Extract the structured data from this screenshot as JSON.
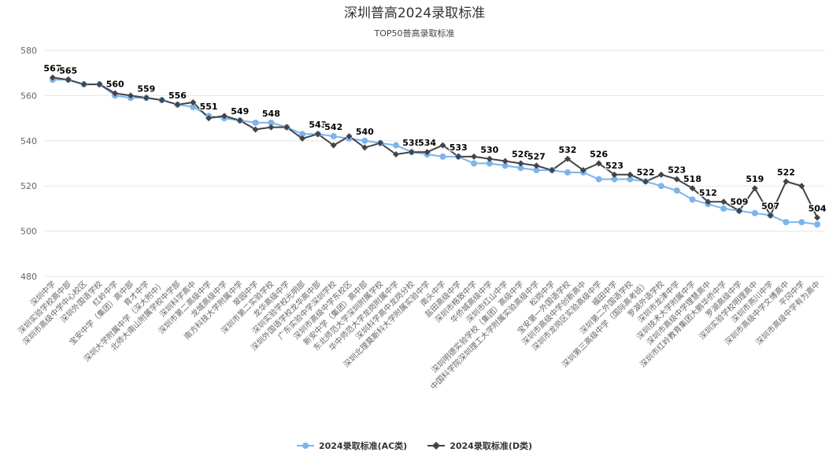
{
  "chart_data": {
    "type": "line",
    "title": "深圳普高2024录取标准",
    "subtitle": "TOP50普高录取标准",
    "ylim": [
      480,
      580
    ],
    "yticks": [
      480,
      500,
      520,
      540,
      560,
      580
    ],
    "grid": true,
    "legend_position": "bottom",
    "categories": [
      "深圳中学",
      "深圳实验学校高中部",
      "深圳市高级中学中心校区",
      "深圳外国语学校",
      "红岭中学",
      "宝安中学（集团）高中部",
      "育才中学",
      "深圳大学附属中学（深大附中）",
      "北师大南山附属学校中学部",
      "深圳科学高中",
      "深圳市第二高级中学",
      "龙城高级中学",
      "南方科技大学附属中学",
      "翠园中学",
      "深圳市第二实验学校",
      "龙华高级中学",
      "深圳实验学校光明部",
      "深圳外国语学校龙华高中部",
      "广东实验中学深圳学校",
      "深圳市高级中学东校区",
      "新安中学（集团）高中部",
      "东北师范大学深圳附属学校",
      "华中师范大学龙岗附属中学",
      "深圳科学高中龙岗分校",
      "深圳北理莫斯科大学附属实验中学",
      "南头中学",
      "盐田高级中学",
      "深圳市格致中学",
      "华侨城高级中学",
      "深圳市红山中学",
      "深圳明德实验学校（集团）高级中学",
      "中国科学院深圳理工大学附属实验高级中学",
      "松岗中学",
      "宝安第一外国语学校",
      "深圳市高级中学创新高中",
      "深圳市龙岗区实验高级中学",
      "福田中学",
      "深圳第二外国语学校",
      "深圳第三高级中学（国际高考班）",
      "罗湖外语学校",
      "深圳市龙津中学",
      "深圳技术大学附属中学",
      "深圳市高级中学理慧高中",
      "深圳市红岭教育集团大鹏华侨中学",
      "罗湖高级中学",
      "深圳实验学校明理高中",
      "深圳市燕川中学",
      "深圳市高级中学文博高中",
      "平冈中学",
      "深圳市高级中学有为高中"
    ],
    "series": [
      {
        "name": "2024录取标准(AC类)",
        "color": "#7cb5ec",
        "marker": "circle",
        "values": [
          567,
          567,
          565,
          565,
          560,
          559,
          559,
          558,
          556,
          555,
          551,
          550,
          549,
          548,
          548,
          546,
          543,
          543,
          542,
          541,
          540,
          539,
          538,
          535,
          534,
          533,
          533,
          530,
          530,
          529,
          528,
          527,
          527,
          526,
          526,
          523,
          523,
          523,
          522,
          520,
          518,
          514,
          512,
          510,
          509,
          508,
          507,
          504,
          504,
          503
        ]
      },
      {
        "name": "2024录取标准(D类)",
        "color": "#434348",
        "marker": "diamond",
        "values": [
          568,
          567,
          565,
          565,
          561,
          560,
          559,
          558,
          556,
          557,
          550,
          551,
          549,
          545,
          546,
          546,
          541,
          543,
          538,
          542,
          537,
          539,
          534,
          535,
          535,
          538,
          533,
          533,
          532,
          531,
          530,
          529,
          527,
          532,
          527,
          530,
          525,
          525,
          522,
          525,
          523,
          519,
          513,
          513,
          509,
          519,
          507,
          522,
          520,
          506
        ]
      }
    ],
    "data_labels": [
      {
        "index": 0,
        "value": "567"
      },
      {
        "index": 2,
        "value": "565"
      },
      {
        "index": 5,
        "value": "560"
      },
      {
        "index": 7,
        "value": "559"
      },
      {
        "index": 10,
        "value": "556"
      },
      {
        "index": 12,
        "value": "551"
      },
      {
        "index": 15,
        "value": "549"
      },
      {
        "index": 17,
        "value": "548"
      },
      {
        "index": 20,
        "value": "543"
      },
      {
        "index": 22,
        "value": "542"
      },
      {
        "index": 24,
        "value": "540"
      },
      {
        "index": 27,
        "value": "538"
      },
      {
        "index": 29,
        "value": "534"
      },
      {
        "index": 31,
        "value": "533"
      },
      {
        "index": 33,
        "value": "530"
      },
      {
        "index": 35,
        "value": "528"
      },
      {
        "index": 37,
        "value": "527"
      },
      {
        "index": 39,
        "value": "532"
      },
      {
        "index": 41,
        "value": "526"
      },
      {
        "index": 43,
        "value": "523"
      },
      {
        "index": 45,
        "value": "522"
      },
      {
        "index": 47,
        "value": "523"
      },
      {
        "index": 48,
        "value": "518"
      },
      {
        "index": 50,
        "value": "512"
      },
      {
        "index": 52,
        "value": "509"
      },
      {
        "index": 53,
        "value": "519"
      },
      {
        "index": 54,
        "value": "507"
      },
      {
        "index": 55,
        "value": "522"
      },
      {
        "index": 57,
        "value": "504"
      }
    ]
  }
}
